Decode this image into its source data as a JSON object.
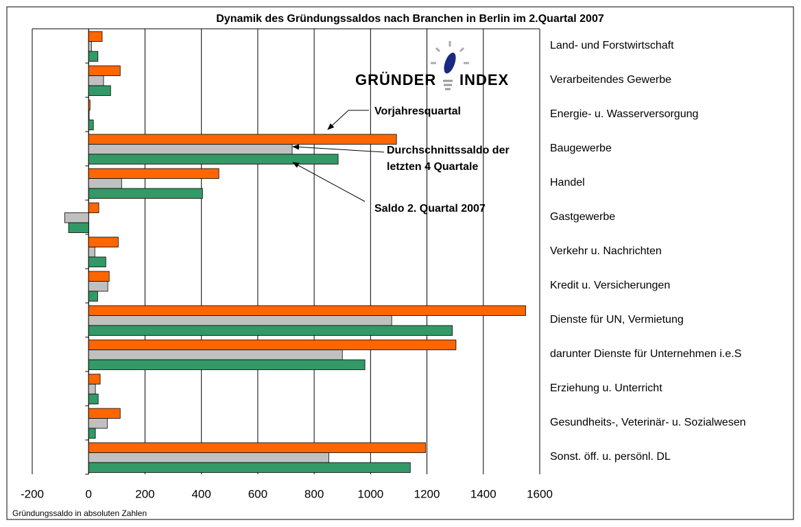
{
  "chart_data": {
    "type": "hbar",
    "title": "Dynamik des Gründungssaldos nach Branchen in Berlin im 2.Quartal 2007",
    "xlabel": "Gründungssaldo in absoluten Zahlen",
    "logo": [
      "GRÜNDER",
      "INDEX"
    ],
    "categories": [
      "Land- und Forstwirtschaft",
      "Verarbeitendes Gewerbe",
      "Energie- u. Wasserversorgung",
      "Baugewerbe",
      "Handel",
      "Gastgewerbe",
      "Verkehr u. Nachrichten",
      "Kredit u. Versicherungen",
      "Dienste für UN, Vermietung",
      "darunter Dienste für Unternehmen i.e.S",
      "Erziehung u. Unterricht",
      "Gesundheits-, Veterinär- u. Sozialwesen",
      "Sonst. öff. u. persönl. DL"
    ],
    "series": [
      {
        "name": "Vorjahresquartal",
        "color": "#ff6600",
        "values": [
          48,
          112,
          5,
          1092,
          462,
          36,
          105,
          73,
          1550,
          1303,
          41,
          112,
          1195
        ]
      },
      {
        "name": "Durchschnittssaldo der letzten 4 Quartale",
        "color": "#c0c0c0",
        "values": [
          10,
          53,
          2,
          722,
          117,
          -85,
          22,
          68,
          1075,
          900,
          24,
          66,
          852
        ]
      },
      {
        "name": "Saldo 2. Quartal  2007",
        "color": "#339966",
        "values": [
          33,
          78,
          17,
          885,
          404,
          -71,
          61,
          32,
          1290,
          980,
          34,
          24,
          1141
        ]
      }
    ],
    "xlim": [
      -200,
      1600
    ],
    "xticks": [
      -200,
      0,
      200,
      400,
      600,
      800,
      1000,
      1200,
      1400,
      1600
    ],
    "grid": true
  }
}
